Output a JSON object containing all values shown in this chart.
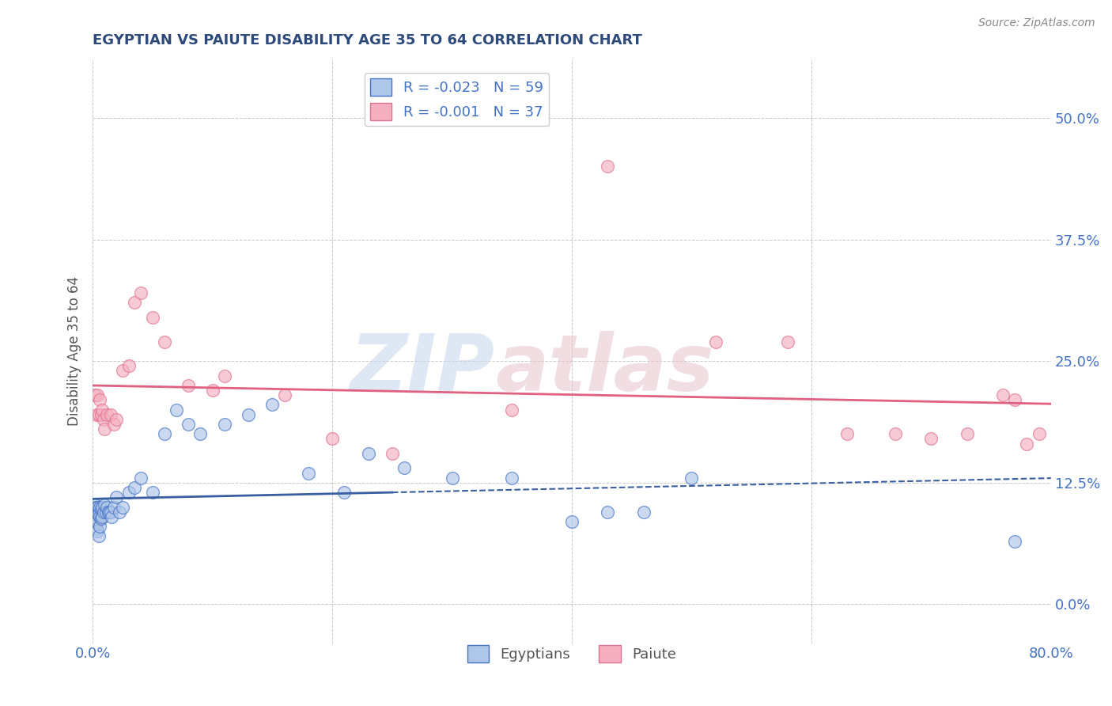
{
  "title": "EGYPTIAN VS PAIUTE DISABILITY AGE 35 TO 64 CORRELATION CHART",
  "source_text": "Source: ZipAtlas.com",
  "ylabel": "Disability Age 35 to 64",
  "xlim": [
    0.0,
    0.8
  ],
  "ylim": [
    -0.04,
    0.56
  ],
  "yticks": [
    0.0,
    0.125,
    0.25,
    0.375,
    0.5
  ],
  "ytick_labels": [
    "0.0%",
    "12.5%",
    "25.0%",
    "37.5%",
    "50.0%"
  ],
  "xticks": [
    0.0,
    0.2,
    0.4,
    0.6,
    0.8
  ],
  "xtick_labels": [
    "0.0%",
    "",
    "",
    "",
    "80.0%"
  ],
  "legend_r_egyptian": "-0.023",
  "legend_n_egyptian": "59",
  "legend_r_paiute": "-0.001",
  "legend_n_paiute": "37",
  "egyptian_color": "#aec6e8",
  "paiute_color": "#f4b0c0",
  "egyptian_edge_color": "#4472c4",
  "paiute_edge_color": "#e07090",
  "egyptian_line_color": "#3a5fa0",
  "paiute_line_color": "#e06080",
  "grid_color": "#bbbbbb",
  "title_color": "#2e4a7a",
  "tick_label_color": "#4472c4",
  "source_color": "#888888",
  "egyptian_x": [
    0.001,
    0.001,
    0.001,
    0.002,
    0.002,
    0.002,
    0.002,
    0.003,
    0.003,
    0.003,
    0.003,
    0.004,
    0.004,
    0.004,
    0.004,
    0.005,
    0.005,
    0.005,
    0.006,
    0.006,
    0.006,
    0.007,
    0.007,
    0.008,
    0.008,
    0.009,
    0.01,
    0.011,
    0.012,
    0.013,
    0.014,
    0.015,
    0.016,
    0.018,
    0.02,
    0.022,
    0.025,
    0.03,
    0.035,
    0.04,
    0.05,
    0.06,
    0.07,
    0.08,
    0.09,
    0.11,
    0.13,
    0.15,
    0.18,
    0.21,
    0.23,
    0.26,
    0.3,
    0.35,
    0.4,
    0.43,
    0.46,
    0.5,
    0.77
  ],
  "egyptian_y": [
    0.1,
    0.098,
    0.095,
    0.102,
    0.098,
    0.092,
    0.085,
    0.1,
    0.092,
    0.085,
    0.078,
    0.1,
    0.092,
    0.085,
    0.075,
    0.098,
    0.092,
    0.07,
    0.1,
    0.09,
    0.08,
    0.098,
    0.088,
    0.1,
    0.09,
    0.095,
    0.102,
    0.095,
    0.1,
    0.095,
    0.095,
    0.095,
    0.09,
    0.1,
    0.11,
    0.095,
    0.1,
    0.115,
    0.12,
    0.13,
    0.115,
    0.175,
    0.2,
    0.185,
    0.175,
    0.185,
    0.195,
    0.205,
    0.135,
    0.115,
    0.155,
    0.14,
    0.13,
    0.13,
    0.085,
    0.095,
    0.095,
    0.13,
    0.065
  ],
  "paiute_x": [
    0.002,
    0.003,
    0.004,
    0.005,
    0.006,
    0.007,
    0.008,
    0.009,
    0.01,
    0.012,
    0.015,
    0.018,
    0.02,
    0.025,
    0.03,
    0.035,
    0.04,
    0.05,
    0.06,
    0.08,
    0.1,
    0.11,
    0.16,
    0.2,
    0.25,
    0.35,
    0.43,
    0.52,
    0.58,
    0.63,
    0.67,
    0.7,
    0.73,
    0.76,
    0.77,
    0.78,
    0.79
  ],
  "paiute_y": [
    0.215,
    0.195,
    0.215,
    0.195,
    0.21,
    0.195,
    0.2,
    0.19,
    0.18,
    0.195,
    0.195,
    0.185,
    0.19,
    0.24,
    0.245,
    0.31,
    0.32,
    0.295,
    0.27,
    0.225,
    0.22,
    0.235,
    0.215,
    0.17,
    0.155,
    0.2,
    0.45,
    0.27,
    0.27,
    0.175,
    0.175,
    0.17,
    0.175,
    0.215,
    0.21,
    0.165,
    0.175
  ]
}
